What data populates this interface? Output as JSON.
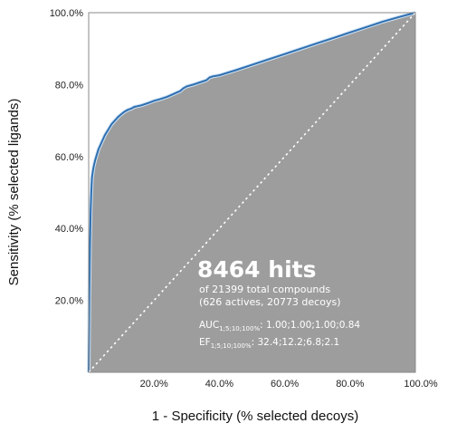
{
  "chart_data": {
    "type": "area",
    "xlabel": "1 - Specificity (% selected decoys)",
    "ylabel": "Sensitivity (% selected ligands)",
    "xlim": [
      0,
      100
    ],
    "ylim": [
      0,
      100
    ],
    "x_ticks": [
      "20.0%",
      "40.0%",
      "60.0%",
      "80.0%",
      "100.0%"
    ],
    "y_ticks": [
      "20.0%",
      "40.0%",
      "60.0%",
      "80.0%",
      "100.0%"
    ],
    "x_tick_values": [
      20,
      40,
      60,
      80,
      100
    ],
    "y_tick_values": [
      20,
      40,
      60,
      80,
      100
    ],
    "grid": false,
    "legend": "none",
    "colors": {
      "fill": "#9d9d9d",
      "curve": "#2f6fb0",
      "diagonal": "#ffffff"
    },
    "series": [
      {
        "x": [
          0,
          0.2,
          0.4,
          0.6,
          0.8,
          1.0,
          1.3,
          1.6,
          2.0,
          2.5,
          3.0,
          3.5,
          4.0,
          4.5,
          5.0,
          6.0,
          7.0,
          8.0,
          9.0,
          10.0,
          11.0,
          12.0,
          13.0,
          14.0,
          15.0,
          16.0,
          18.0,
          20.0,
          22.0,
          24.0,
          25.0,
          26.0,
          27.0,
          28.0,
          29.0,
          30.0,
          32.0,
          34.0,
          36.0,
          37.0,
          38.0,
          40.0,
          45.0,
          50.0,
          55.0,
          60.0,
          65.0,
          70.0,
          75.0,
          80.0,
          85.0,
          90.0,
          95.0,
          100.0
        ],
        "y": [
          0,
          20.0,
          35.0,
          45.0,
          50.0,
          54.0,
          56.0,
          57.5,
          59.0,
          60.5,
          62.0,
          63.0,
          64.0,
          65.0,
          66.0,
          67.5,
          69.0,
          70.0,
          71.0,
          71.8,
          72.5,
          73.0,
          73.3,
          73.8,
          74.0,
          74.2,
          74.8,
          75.5,
          76.0,
          76.6,
          77.0,
          77.4,
          77.8,
          78.2,
          79.0,
          79.5,
          80.0,
          80.6,
          81.2,
          82.0,
          82.3,
          82.6,
          84.0,
          85.5,
          87.0,
          88.5,
          90.0,
          91.5,
          93.0,
          94.5,
          96.0,
          97.5,
          98.8,
          100.0
        ]
      },
      {
        "x": [
          0,
          100
        ],
        "y": [
          0,
          100
        ]
      }
    ],
    "annotation": {
      "headline": "8464 hits",
      "line1": "of 21399 total compounds",
      "line2": "(626 actives, 20773 decoys)",
      "auc_label": "AUC",
      "auc_sub": "1;5;10;100%",
      "auc_values": ": 1.00;1.00;1.00;0.84",
      "ef_label": "EF",
      "ef_sub": "1;5;10;100%",
      "ef_values": ": 32.4;12.2;6.8;2.1"
    }
  }
}
